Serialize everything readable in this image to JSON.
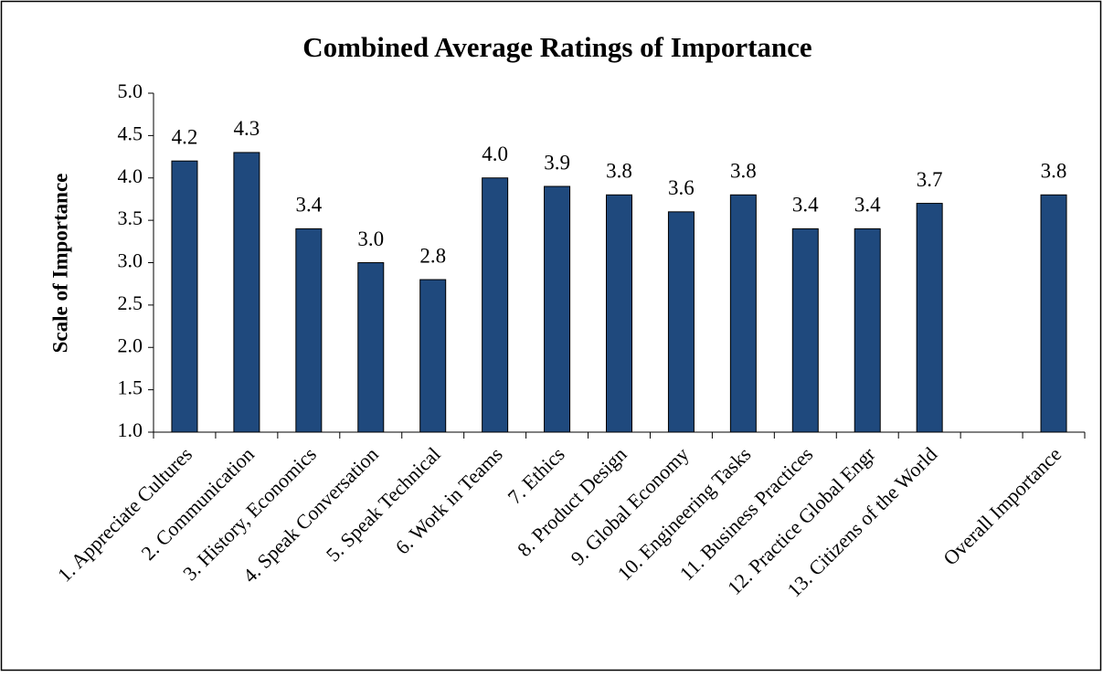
{
  "chart_data": {
    "type": "bar",
    "title": "Combined Average Ratings of Importance",
    "y_label": "Scale of Importance",
    "categories": [
      "1. Appreciate Cultures",
      "2. Communication",
      "3. History, Economics",
      "4. Speak Conversation",
      "5. Speak Technical",
      "6. Work in Teams",
      "7. Ethics",
      "8. Product Design",
      "9. Global Economy",
      "10. Engineering Tasks",
      "11. Business Practices",
      "12. Practice Global Engr",
      "13. Citizens of the World",
      null,
      "Overall Importance"
    ],
    "values": [
      4.2,
      4.3,
      3.4,
      3.0,
      2.8,
      4.0,
      3.9,
      3.8,
      3.6,
      3.8,
      3.4,
      3.4,
      3.7,
      null,
      3.8
    ],
    "value_labels": [
      "4.2",
      "4.3",
      "3.4",
      "3.0",
      "2.8",
      "4.0",
      "3.9",
      "3.8",
      "3.6",
      "3.8",
      "3.4",
      "3.4",
      "3.7",
      null,
      "3.8"
    ],
    "color": "#1f497d",
    "ylim": [
      1.0,
      5.0
    ],
    "yticks": [
      {
        "value": 1.0,
        "label": "1.0"
      },
      {
        "value": 1.5,
        "label": "1.5"
      },
      {
        "value": 2.0,
        "label": "2.0"
      },
      {
        "value": 2.5,
        "label": "2.5"
      },
      {
        "value": 3.0,
        "label": "3.0"
      },
      {
        "value": 3.5,
        "label": "3.5"
      },
      {
        "value": 4.0,
        "label": "4.0"
      },
      {
        "value": 4.5,
        "label": "4.5"
      },
      {
        "value": 5.0,
        "label": "5.0"
      }
    ],
    "grid": false
  }
}
